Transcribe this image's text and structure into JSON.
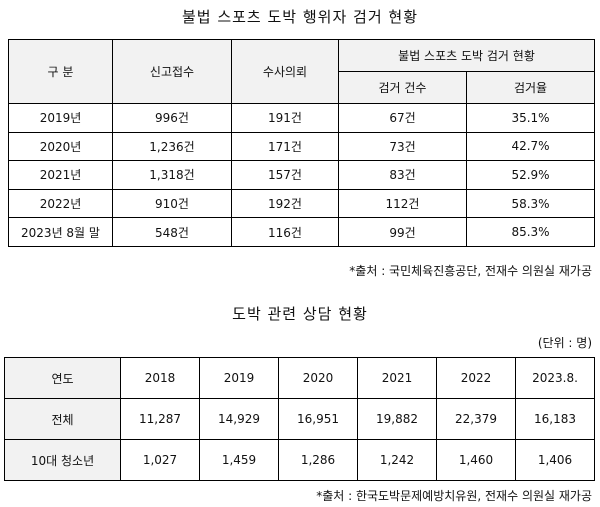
{
  "table1": {
    "title": "불법 스포츠 도박 행위자 검거 현황",
    "headers": {
      "category": "구 분",
      "reports": "신고접수",
      "investigation": "수사의뢰",
      "group": "불법 스포츠 도박 검거 현황",
      "arrests": "검거 건수",
      "rate": "검거율"
    },
    "rows": [
      {
        "year": "2019년",
        "reports": "996건",
        "investigation": "191건",
        "arrests": "67건",
        "rate": "35.1%"
      },
      {
        "year": "2020년",
        "reports": "1,236건",
        "investigation": "171건",
        "arrests": "73건",
        "rate": "42.7%"
      },
      {
        "year": "2021년",
        "reports": "1,318건",
        "investigation": "157건",
        "arrests": "83건",
        "rate": "52.9%"
      },
      {
        "year": "2022년",
        "reports": "910건",
        "investigation": "192건",
        "arrests": "112건",
        "rate": "58.3%"
      },
      {
        "year": "2023년 8월 말",
        "reports": "548건",
        "investigation": "116건",
        "arrests": "99건",
        "rate": "85.3%"
      }
    ],
    "source": "*출처 : 국민체육진흥공단, 전재수 의원실 재가공"
  },
  "table2": {
    "title": "도박 관련 상담 현황",
    "unit": "(단위 : 명)",
    "header_label": "연도",
    "years": [
      "2018",
      "2019",
      "2020",
      "2021",
      "2022",
      "2023.8."
    ],
    "rows": [
      {
        "label": "전체",
        "values": [
          "11,287",
          "14,929",
          "16,951",
          "19,882",
          "22,379",
          "16,183"
        ]
      },
      {
        "label": "10대 청소년",
        "values": [
          "1,027",
          "1,459",
          "1,286",
          "1,242",
          "1,460",
          "1,406"
        ]
      }
    ],
    "source": "*출처 : 한국도박문제예방치유원, 전재수 의원실 재가공"
  }
}
